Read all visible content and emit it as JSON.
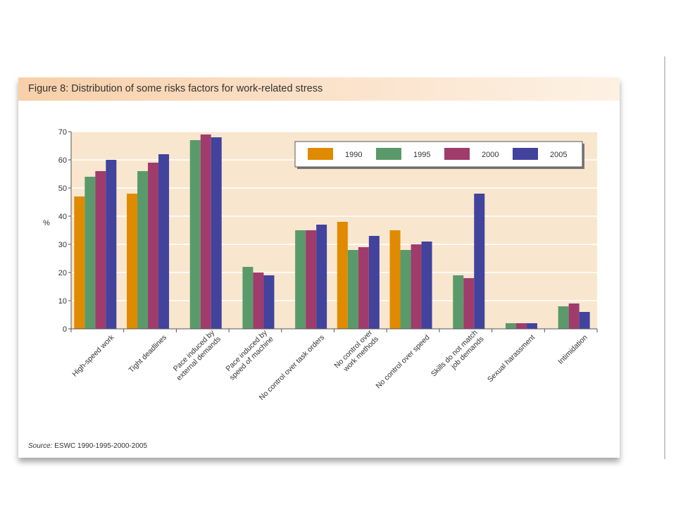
{
  "figure": {
    "title": "Figure 8:  Distribution of some risks factors for work-related stress",
    "source_label": "Source:",
    "source_text": "ESWC 1990-1995-2000-2005"
  },
  "chart_data": {
    "type": "bar",
    "title": "",
    "xlabel": "",
    "ylabel": "%",
    "ylim": [
      0,
      70
    ],
    "yticks": [
      0,
      10,
      20,
      30,
      40,
      50,
      60,
      70
    ],
    "grid": true,
    "legend_position": "top-right",
    "background_color": "#f8e6cf",
    "categories": [
      "High-speed work",
      "Tight deadlines",
      "Pace induced by\nexternal demands",
      "Pace induced by\nspeed of machine",
      "No control over task orders",
      "No control over\nwork methods",
      "No control over speed",
      "Skills do not match\njob demands",
      "Sexual harassment",
      "Intimidation"
    ],
    "series": [
      {
        "name": "1990",
        "color": "#e08a00",
        "values": [
          47,
          48,
          null,
          null,
          null,
          38,
          35,
          null,
          null,
          null
        ]
      },
      {
        "name": "1995",
        "color": "#5a9a6a",
        "values": [
          54,
          56,
          67,
          22,
          35,
          28,
          28,
          19,
          2,
          8
        ]
      },
      {
        "name": "2000",
        "color": "#a03c6c",
        "values": [
          56,
          59,
          69,
          20,
          35,
          29,
          30,
          18,
          2,
          9
        ]
      },
      {
        "name": "2005",
        "color": "#41439c",
        "values": [
          60,
          62,
          68,
          19,
          37,
          33,
          31,
          48,
          2,
          6
        ]
      }
    ]
  }
}
